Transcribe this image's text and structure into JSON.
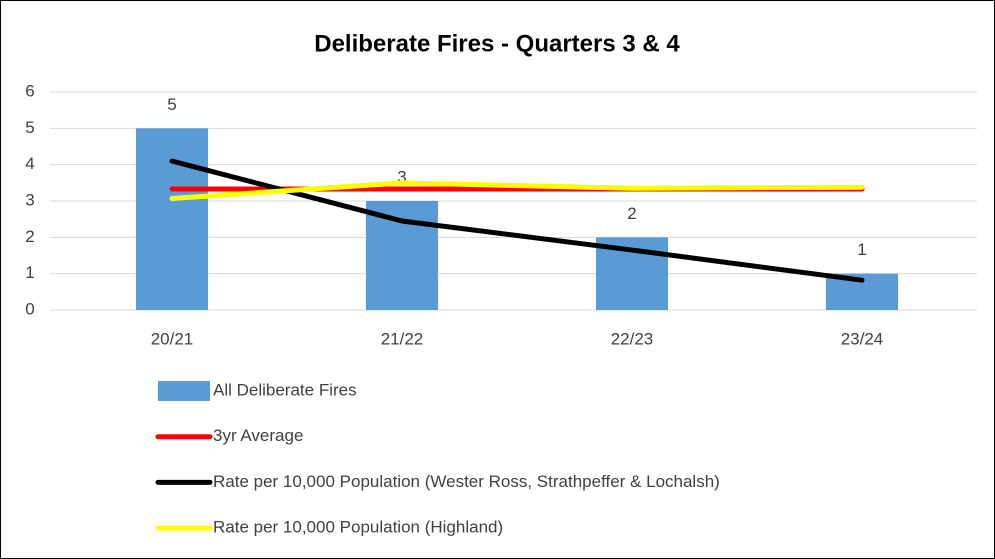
{
  "chart_data": {
    "type": "bar",
    "title": "Deliberate Fires - Quarters 3 & 4",
    "categories": [
      "20/21",
      "21/22",
      "22/23",
      "23/24"
    ],
    "series": [
      {
        "name": "All Deliberate Fires",
        "type": "bar",
        "color": "#5b9bd5",
        "values": [
          5,
          3,
          2,
          1
        ],
        "data_labels": true
      },
      {
        "name": "3yr Average",
        "type": "line",
        "color": "#ff0000",
        "values": [
          3.33,
          3.33,
          3.33,
          3.33
        ]
      },
      {
        "name": "Rate per 10,000 Population (Wester Ross, Strathpeffer & Lochalsh)",
        "type": "line",
        "color": "#000000",
        "values": [
          4.1,
          2.45,
          1.65,
          0.82
        ]
      },
      {
        "name": "Rate per 10,000 Population (Highland)",
        "type": "line",
        "color": "#ffff00",
        "values": [
          3.07,
          3.5,
          3.35,
          3.38
        ]
      }
    ],
    "ylim": [
      0,
      6
    ],
    "yticks": [
      0,
      1,
      2,
      3,
      4,
      5,
      6
    ],
    "grid": true,
    "legend": "bottom"
  }
}
